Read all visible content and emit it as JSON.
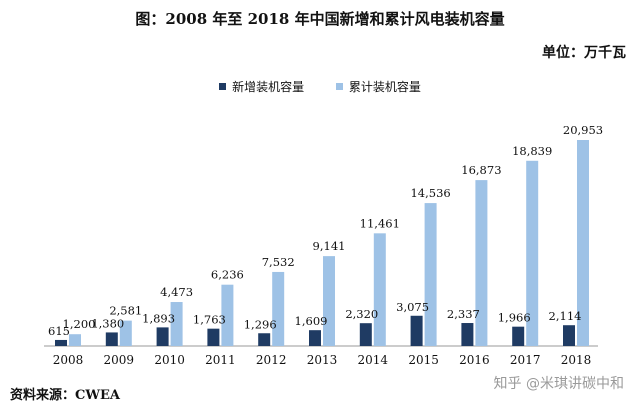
{
  "chart_data": {
    "type": "bar",
    "title": "图：2008 年至 2018 年中国新增和累计风电装机容量",
    "unit_label": "单位：万千瓦",
    "categories": [
      "2008",
      "2009",
      "2010",
      "2011",
      "2012",
      "2013",
      "2014",
      "2015",
      "2016",
      "2017",
      "2018"
    ],
    "series": [
      {
        "name": "新增装机容量",
        "color": "#1f3b63",
        "values": [
          615,
          1380,
          1893,
          1763,
          1296,
          1609,
          2320,
          3075,
          2337,
          1966,
          2114
        ],
        "labels": [
          "615",
          "1,380",
          "1,893",
          "1,763",
          "1,296",
          "1,609",
          "2,320",
          "3,075",
          "2,337",
          "1,966",
          "2,114"
        ]
      },
      {
        "name": "累计装机容量",
        "color": "#9ec2e6",
        "values": [
          1200,
          2581,
          4473,
          6236,
          7532,
          9141,
          11461,
          14536,
          16873,
          18839,
          20953
        ],
        "labels": [
          "1,200",
          "2,581",
          "4,473",
          "6,236",
          "7,532",
          "9,141",
          "11,461",
          "14,536",
          "16,873",
          "18,839",
          "20,953"
        ]
      }
    ],
    "ylim": [
      0,
      22000
    ],
    "grid": false,
    "legend_position": "top-center"
  },
  "source": "资料来源：CWEA",
  "watermark": "知乎 @米琪讲碳中和"
}
